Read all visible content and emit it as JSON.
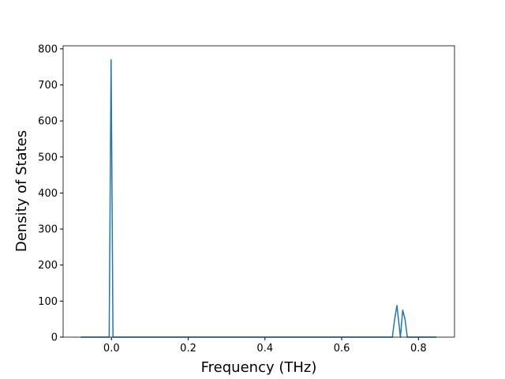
{
  "chart_data": {
    "type": "line",
    "x_label": "Frequency (THz)",
    "y_label": "Density of States",
    "x": [
      -0.08,
      -0.006,
      -0.001,
      0.004,
      0.732,
      0.738,
      0.744,
      0.753,
      0.759,
      0.765,
      0.771,
      0.847
    ],
    "values": [
      0,
      0,
      770,
      0,
      0,
      50,
      88,
      0,
      75,
      50,
      0,
      0
    ],
    "color": "#1f77b4",
    "xlim": [
      -0.126,
      0.894
    ],
    "ylim": [
      0,
      808.5
    ],
    "xticks": [
      {
        "value": 0,
        "label": "0.0"
      },
      0.2,
      0.4,
      0.6,
      0.8
    ],
    "yticks": [
      0,
      100,
      200,
      300,
      400,
      500,
      600,
      700,
      800
    ],
    "grid": false
  }
}
